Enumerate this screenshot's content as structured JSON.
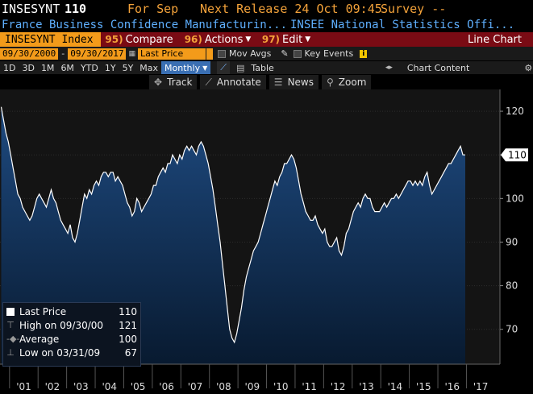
{
  "header": {
    "ticker": "INSESYNT",
    "last_value": "110",
    "for_label": "For Sep",
    "next_release": "Next Release 24 Oct 09:45",
    "survey": "Survey --",
    "description": "France Business Confidence Manufacturin...",
    "source": "INSEE National Statistics Offi..."
  },
  "toolbar": {
    "ticker_field": "INSESYNT Index",
    "compare_num": "95)",
    "compare_label": "Compare",
    "actions_num": "96)",
    "actions_label": "Actions",
    "edit_num": "97)",
    "edit_label": "Edit",
    "chart_type": "Line Chart"
  },
  "controls": {
    "start_date": "09/30/2000",
    "end_date": "09/30/2017",
    "price_field": "Last Price",
    "period": "Monthly",
    "mov_avgs": "Mov Avgs",
    "key_events": "Key Events"
  },
  "periods": [
    "1D",
    "3D",
    "1M",
    "6M",
    "YTD",
    "1Y",
    "5Y",
    "Max"
  ],
  "table_label": "Table",
  "chart_content_label": "Chart Content",
  "tools": {
    "track": "Track",
    "annotate": "Annotate",
    "news": "News",
    "zoom": "Zoom"
  },
  "legend": {
    "last_price_label": "Last Price",
    "last_price_value": "110",
    "high_label": "High on 09/30/00",
    "high_value": "121",
    "average_label": "Average",
    "average_value": "100",
    "low_label": "Low on 03/31/09",
    "low_value": "67"
  },
  "colors": {
    "bloomberg_orange": "#f39b1a",
    "menu_red": "#7a0b14",
    "area_top": "#1e4a80"
  },
  "chart_data": {
    "type": "area",
    "x_start": "2000-09",
    "frequency": "monthly",
    "values": [
      121,
      118,
      115,
      113,
      110,
      107,
      104,
      101,
      100,
      98,
      97,
      96,
      95,
      96,
      98,
      100,
      101,
      100,
      99,
      98,
      100,
      102,
      100,
      99,
      97,
      95,
      94,
      93,
      92,
      94,
      91,
      90,
      92,
      95,
      98,
      101,
      100,
      102,
      101,
      103,
      104,
      103,
      105,
      106,
      106,
      105,
      106,
      106,
      104,
      105,
      104,
      103,
      101,
      99,
      98,
      96,
      97,
      100,
      99,
      97,
      98,
      99,
      100,
      101,
      103,
      103,
      105,
      106,
      107,
      106,
      108,
      108,
      110,
      109,
      108,
      110,
      109,
      111,
      112,
      111,
      112,
      111,
      110,
      112,
      113,
      112,
      110,
      108,
      105,
      102,
      98,
      94,
      90,
      85,
      80,
      75,
      70,
      68,
      67,
      69,
      72,
      75,
      79,
      82,
      84,
      86,
      88,
      89,
      90,
      92,
      94,
      96,
      98,
      100,
      102,
      104,
      103,
      105,
      106,
      108,
      108,
      109,
      110,
      109,
      107,
      104,
      101,
      99,
      97,
      96,
      95,
      95,
      96,
      94,
      93,
      92,
      93,
      90,
      89,
      89,
      90,
      91,
      88,
      87,
      89,
      92,
      93,
      95,
      97,
      98,
      99,
      98,
      100,
      101,
      100,
      100,
      98,
      97,
      97,
      97,
      98,
      99,
      98,
      99,
      100,
      100,
      101,
      100,
      101,
      102,
      103,
      104,
      104,
      103,
      104,
      103,
      104,
      103,
      105,
      106,
      103,
      101,
      102,
      103,
      104,
      105,
      106,
      107,
      108,
      108,
      109,
      110,
      111,
      112,
      110,
      110
    ],
    "ylim": [
      62,
      125
    ],
    "y_ticks": [
      70,
      80,
      90,
      100,
      110,
      120
    ],
    "x_tick_labels": [
      "'01",
      "'02",
      "'03",
      "'04",
      "'05",
      "'06",
      "'07",
      "'08",
      "'09",
      "'10",
      "'11",
      "'12",
      "'13",
      "'14",
      "'15",
      "'16",
      "'17"
    ],
    "last_value_label": "110",
    "grid": true,
    "legend_position": "bottom-left"
  }
}
